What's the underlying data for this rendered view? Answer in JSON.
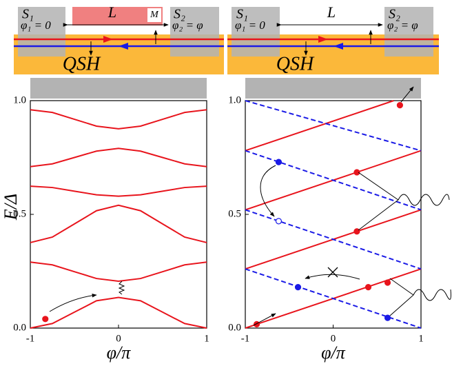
{
  "schematic": {
    "left": {
      "s1": "S₁",
      "phi1": "φ₁ = 0",
      "length": "L",
      "magnet": "M",
      "s2": "S₂",
      "phi2": "φ₂ = φ",
      "material": "QSH"
    },
    "right": {
      "s1": "S₁",
      "phi1": "φ₁ = 0",
      "length": "L",
      "s2": "S₂",
      "phi2": "φ₂ = φ",
      "material": "QSH"
    }
  },
  "chart_data": [
    {
      "type": "line",
      "xlabel": "φ/π",
      "ylabel": "E/Δ",
      "xlim": [
        -1,
        1
      ],
      "ylim": [
        0,
        1
      ],
      "xticks": [
        -1,
        0,
        1
      ],
      "yticks": [
        {
          "value": 0,
          "label": "0.0"
        },
        {
          "value": 0.5,
          "label": "0.5"
        },
        {
          "value": 1,
          "label": "1.0"
        }
      ],
      "series": [
        {
          "color": "#e8141c",
          "x": [
            -1,
            -0.75,
            -0.5,
            -0.25,
            0,
            0.25,
            0.5,
            0.75,
            1
          ],
          "values": [
            0,
            0.02,
            0.07,
            0.12,
            0.135,
            0.12,
            0.07,
            0.02,
            0
          ]
        },
        {
          "color": "#e8141c",
          "x": [
            -1,
            -0.75,
            -0.5,
            -0.25,
            0,
            0.25,
            0.5,
            0.75,
            1
          ],
          "values": [
            0.29,
            0.278,
            0.248,
            0.218,
            0.206,
            0.218,
            0.248,
            0.278,
            0.29
          ]
        },
        {
          "color": "#e8141c",
          "x": [
            -1,
            -0.75,
            -0.5,
            -0.25,
            0,
            0.25,
            0.5,
            0.75,
            1
          ],
          "values": [
            0.376,
            0.4,
            0.458,
            0.516,
            0.54,
            0.516,
            0.458,
            0.4,
            0.376
          ]
        },
        {
          "color": "#e8141c",
          "x": [
            -1,
            -0.75,
            -0.5,
            -0.25,
            0,
            0.25,
            0.5,
            0.75,
            1
          ],
          "values": [
            0.624,
            0.618,
            0.602,
            0.586,
            0.58,
            0.586,
            0.602,
            0.618,
            0.624
          ]
        },
        {
          "color": "#e8141c",
          "x": [
            -1,
            -0.75,
            -0.5,
            -0.25,
            0,
            0.25,
            0.5,
            0.75,
            1
          ],
          "values": [
            0.71,
            0.722,
            0.75,
            0.778,
            0.79,
            0.778,
            0.75,
            0.722,
            0.71
          ]
        },
        {
          "color": "#e8141c",
          "x": [
            -1,
            -0.75,
            -0.5,
            -0.25,
            0,
            0.25,
            0.5,
            0.75,
            1
          ],
          "values": [
            0.96,
            0.948,
            0.918,
            0.888,
            0.876,
            0.888,
            0.918,
            0.948,
            0.96
          ]
        }
      ],
      "markers": [
        {
          "color": "#e8141c",
          "filled": true,
          "x": [
            -0.83
          ],
          "values": [
            0.04
          ]
        }
      ]
    },
    {
      "type": "line",
      "xlabel": "φ/π",
      "xlim": [
        -1,
        1
      ],
      "ylim": [
        0,
        1
      ],
      "xticks": [
        -1,
        0,
        1
      ],
      "yticks": [
        {
          "value": 0,
          "label": "0.0"
        },
        {
          "value": 0.5,
          "label": "0.5"
        },
        {
          "value": 1,
          "label": "1.0"
        }
      ],
      "series": [
        {
          "color": "#e8141c",
          "x": [
            -1,
            1
          ],
          "values": [
            0,
            0.26
          ]
        },
        {
          "color": "#e8141c",
          "x": [
            -1,
            1
          ],
          "values": [
            0.26,
            0.52
          ]
        },
        {
          "color": "#e8141c",
          "x": [
            -1,
            1
          ],
          "values": [
            0.52,
            0.78
          ]
        },
        {
          "color": "#e8141c",
          "x": [
            -1,
            0.69
          ],
          "values": [
            0.78,
            1
          ]
        },
        {
          "color": "#1a1ae6",
          "dashed": true,
          "x": [
            -1,
            1
          ],
          "values": [
            1,
            0.78
          ]
        },
        {
          "color": "#1a1ae6",
          "dashed": true,
          "x": [
            -1,
            1
          ],
          "values": [
            0.78,
            0.52
          ]
        },
        {
          "color": "#1a1ae6",
          "dashed": true,
          "x": [
            -1,
            1
          ],
          "values": [
            0.52,
            0.26
          ]
        },
        {
          "color": "#1a1ae6",
          "dashed": true,
          "x": [
            -1,
            1
          ],
          "values": [
            0.26,
            0
          ]
        }
      ],
      "markers": [
        {
          "color": "#e8141c",
          "filled": true,
          "x": [
            -0.87,
            0.27,
            0.27,
            0.4,
            0.62,
            0.76
          ],
          "values": [
            0.017,
            0.685,
            0.425,
            0.18,
            0.2,
            0.98
          ]
        },
        {
          "color": "#1a1ae6",
          "filled": true,
          "x": [
            -0.62,
            -0.4,
            0.62
          ],
          "values": [
            0.73,
            0.18,
            0.045
          ]
        },
        {
          "color": "#1a1ae6",
          "filled": false,
          "x": [
            -0.62
          ],
          "values": [
            0.47
          ]
        }
      ]
    }
  ]
}
